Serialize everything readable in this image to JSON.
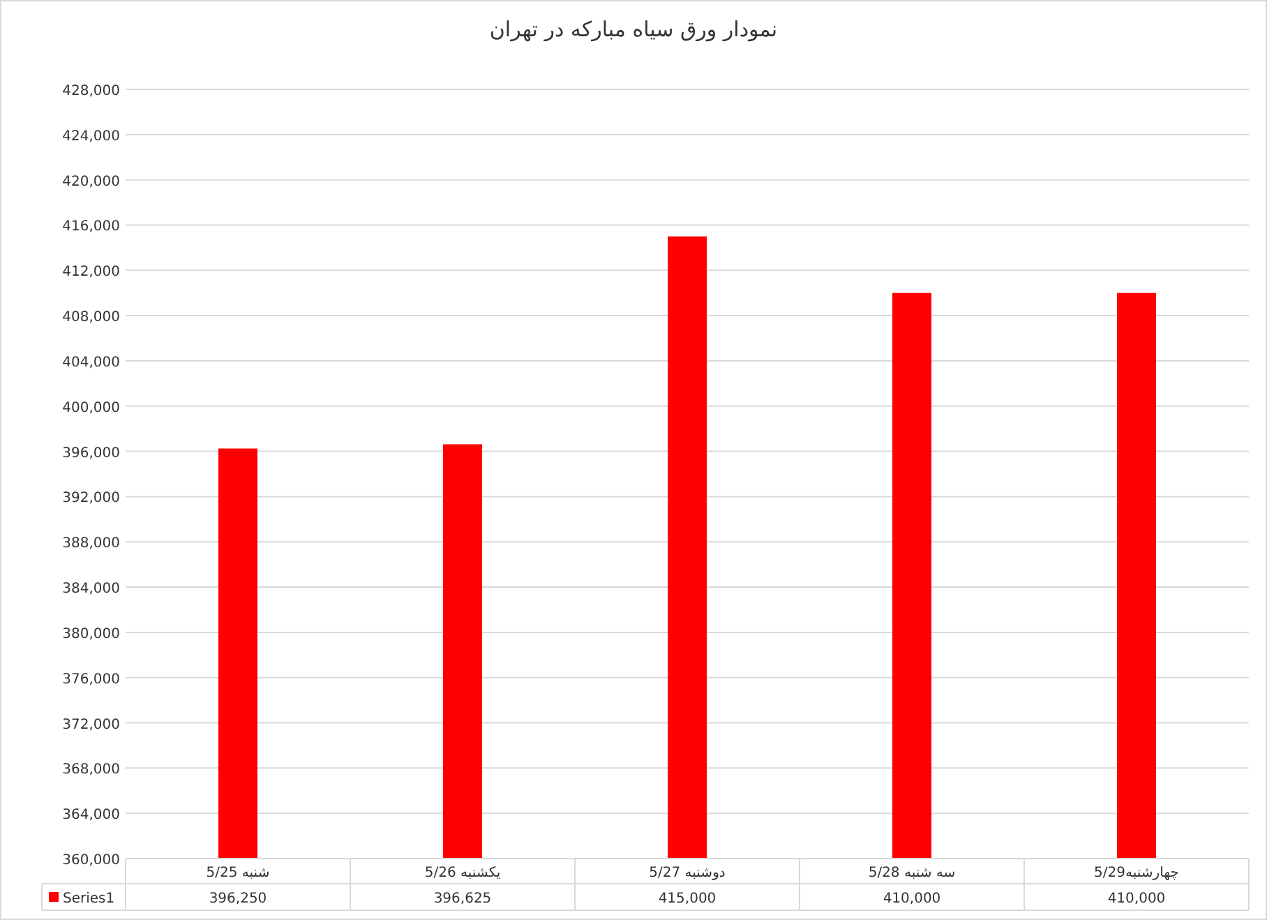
{
  "chart_data": {
    "type": "bar",
    "title": "نمودار ورق سیاه مبارکه در تهران",
    "categories": [
      "شنبه 5/25",
      "یکشنبه 5/26",
      "دوشنبه 5/27",
      "سه شنبه 5/28",
      "چهارشنبه5/29"
    ],
    "series": [
      {
        "name": "Series1",
        "color": "#ff0000",
        "values": [
          396250,
          396625,
          415000,
          410000,
          410000
        ],
        "value_labels": [
          "396,250",
          "396,625",
          "415,000",
          "410,000",
          "410,000"
        ]
      }
    ],
    "ylim": [
      360000,
      428000
    ],
    "yticks": [
      {
        "value": 360000,
        "label": "360,000"
      },
      {
        "value": 364000,
        "label": "364,000"
      },
      {
        "value": 368000,
        "label": "368,000"
      },
      {
        "value": 372000,
        "label": "372,000"
      },
      {
        "value": 376000,
        "label": "376,000"
      },
      {
        "value": 380000,
        "label": "380,000"
      },
      {
        "value": 384000,
        "label": "384,000"
      },
      {
        "value": 388000,
        "label": "388,000"
      },
      {
        "value": 392000,
        "label": "392,000"
      },
      {
        "value": 396000,
        "label": "396,000"
      },
      {
        "value": 400000,
        "label": "400,000"
      },
      {
        "value": 404000,
        "label": "404,000"
      },
      {
        "value": 408000,
        "label": "408,000"
      },
      {
        "value": 412000,
        "label": "412,000"
      },
      {
        "value": 416000,
        "label": "416,000"
      },
      {
        "value": 420000,
        "label": "420,000"
      },
      {
        "value": 424000,
        "label": "424,000"
      },
      {
        "value": 428000,
        "label": "428,000"
      }
    ],
    "grid": "y",
    "legend": "bottom"
  }
}
